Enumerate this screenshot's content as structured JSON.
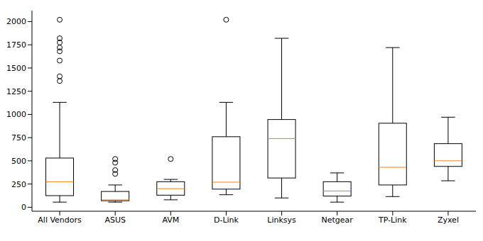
{
  "chart_data": {
    "type": "box",
    "categories": [
      "All Vendors",
      "ASUS",
      "AVM",
      "D-Link",
      "Linksys",
      "Netgear",
      "TP-Link",
      "Zyxel"
    ],
    "boxes": [
      {
        "whislo": 55,
        "q1": 125,
        "median": 275,
        "q3": 530,
        "whishi": 1130,
        "fliers": [
          1360,
          1410,
          1580,
          1680,
          1720,
          1775,
          1820,
          2020
        ]
      },
      {
        "whislo": 55,
        "q1": 70,
        "median": 80,
        "q3": 170,
        "whishi": 240,
        "fliers": [
          360,
          400,
          480,
          520
        ]
      },
      {
        "whislo": 80,
        "q1": 130,
        "median": 200,
        "q3": 275,
        "whishi": 300,
        "fliers": [
          520
        ]
      },
      {
        "whislo": 135,
        "q1": 195,
        "median": 270,
        "q3": 760,
        "whishi": 1130,
        "fliers": [
          2020
        ]
      },
      {
        "whislo": 100,
        "q1": 315,
        "median": 740,
        "q3": 945,
        "whishi": 1820,
        "fliers": []
      },
      {
        "whislo": 55,
        "q1": 120,
        "median": 175,
        "q3": 275,
        "whishi": 370,
        "fliers": []
      },
      {
        "whislo": 115,
        "q1": 240,
        "median": 430,
        "q3": 905,
        "whishi": 1720,
        "fliers": []
      },
      {
        "whislo": 285,
        "q1": 440,
        "median": 500,
        "q3": 685,
        "whishi": 970,
        "fliers": []
      }
    ],
    "color": "#000000",
    "ylim": [
      -43,
      2118
    ],
    "yticks": [
      0,
      250,
      500,
      750,
      1000,
      1250,
      1500,
      1750,
      2000
    ],
    "grid": false
  }
}
